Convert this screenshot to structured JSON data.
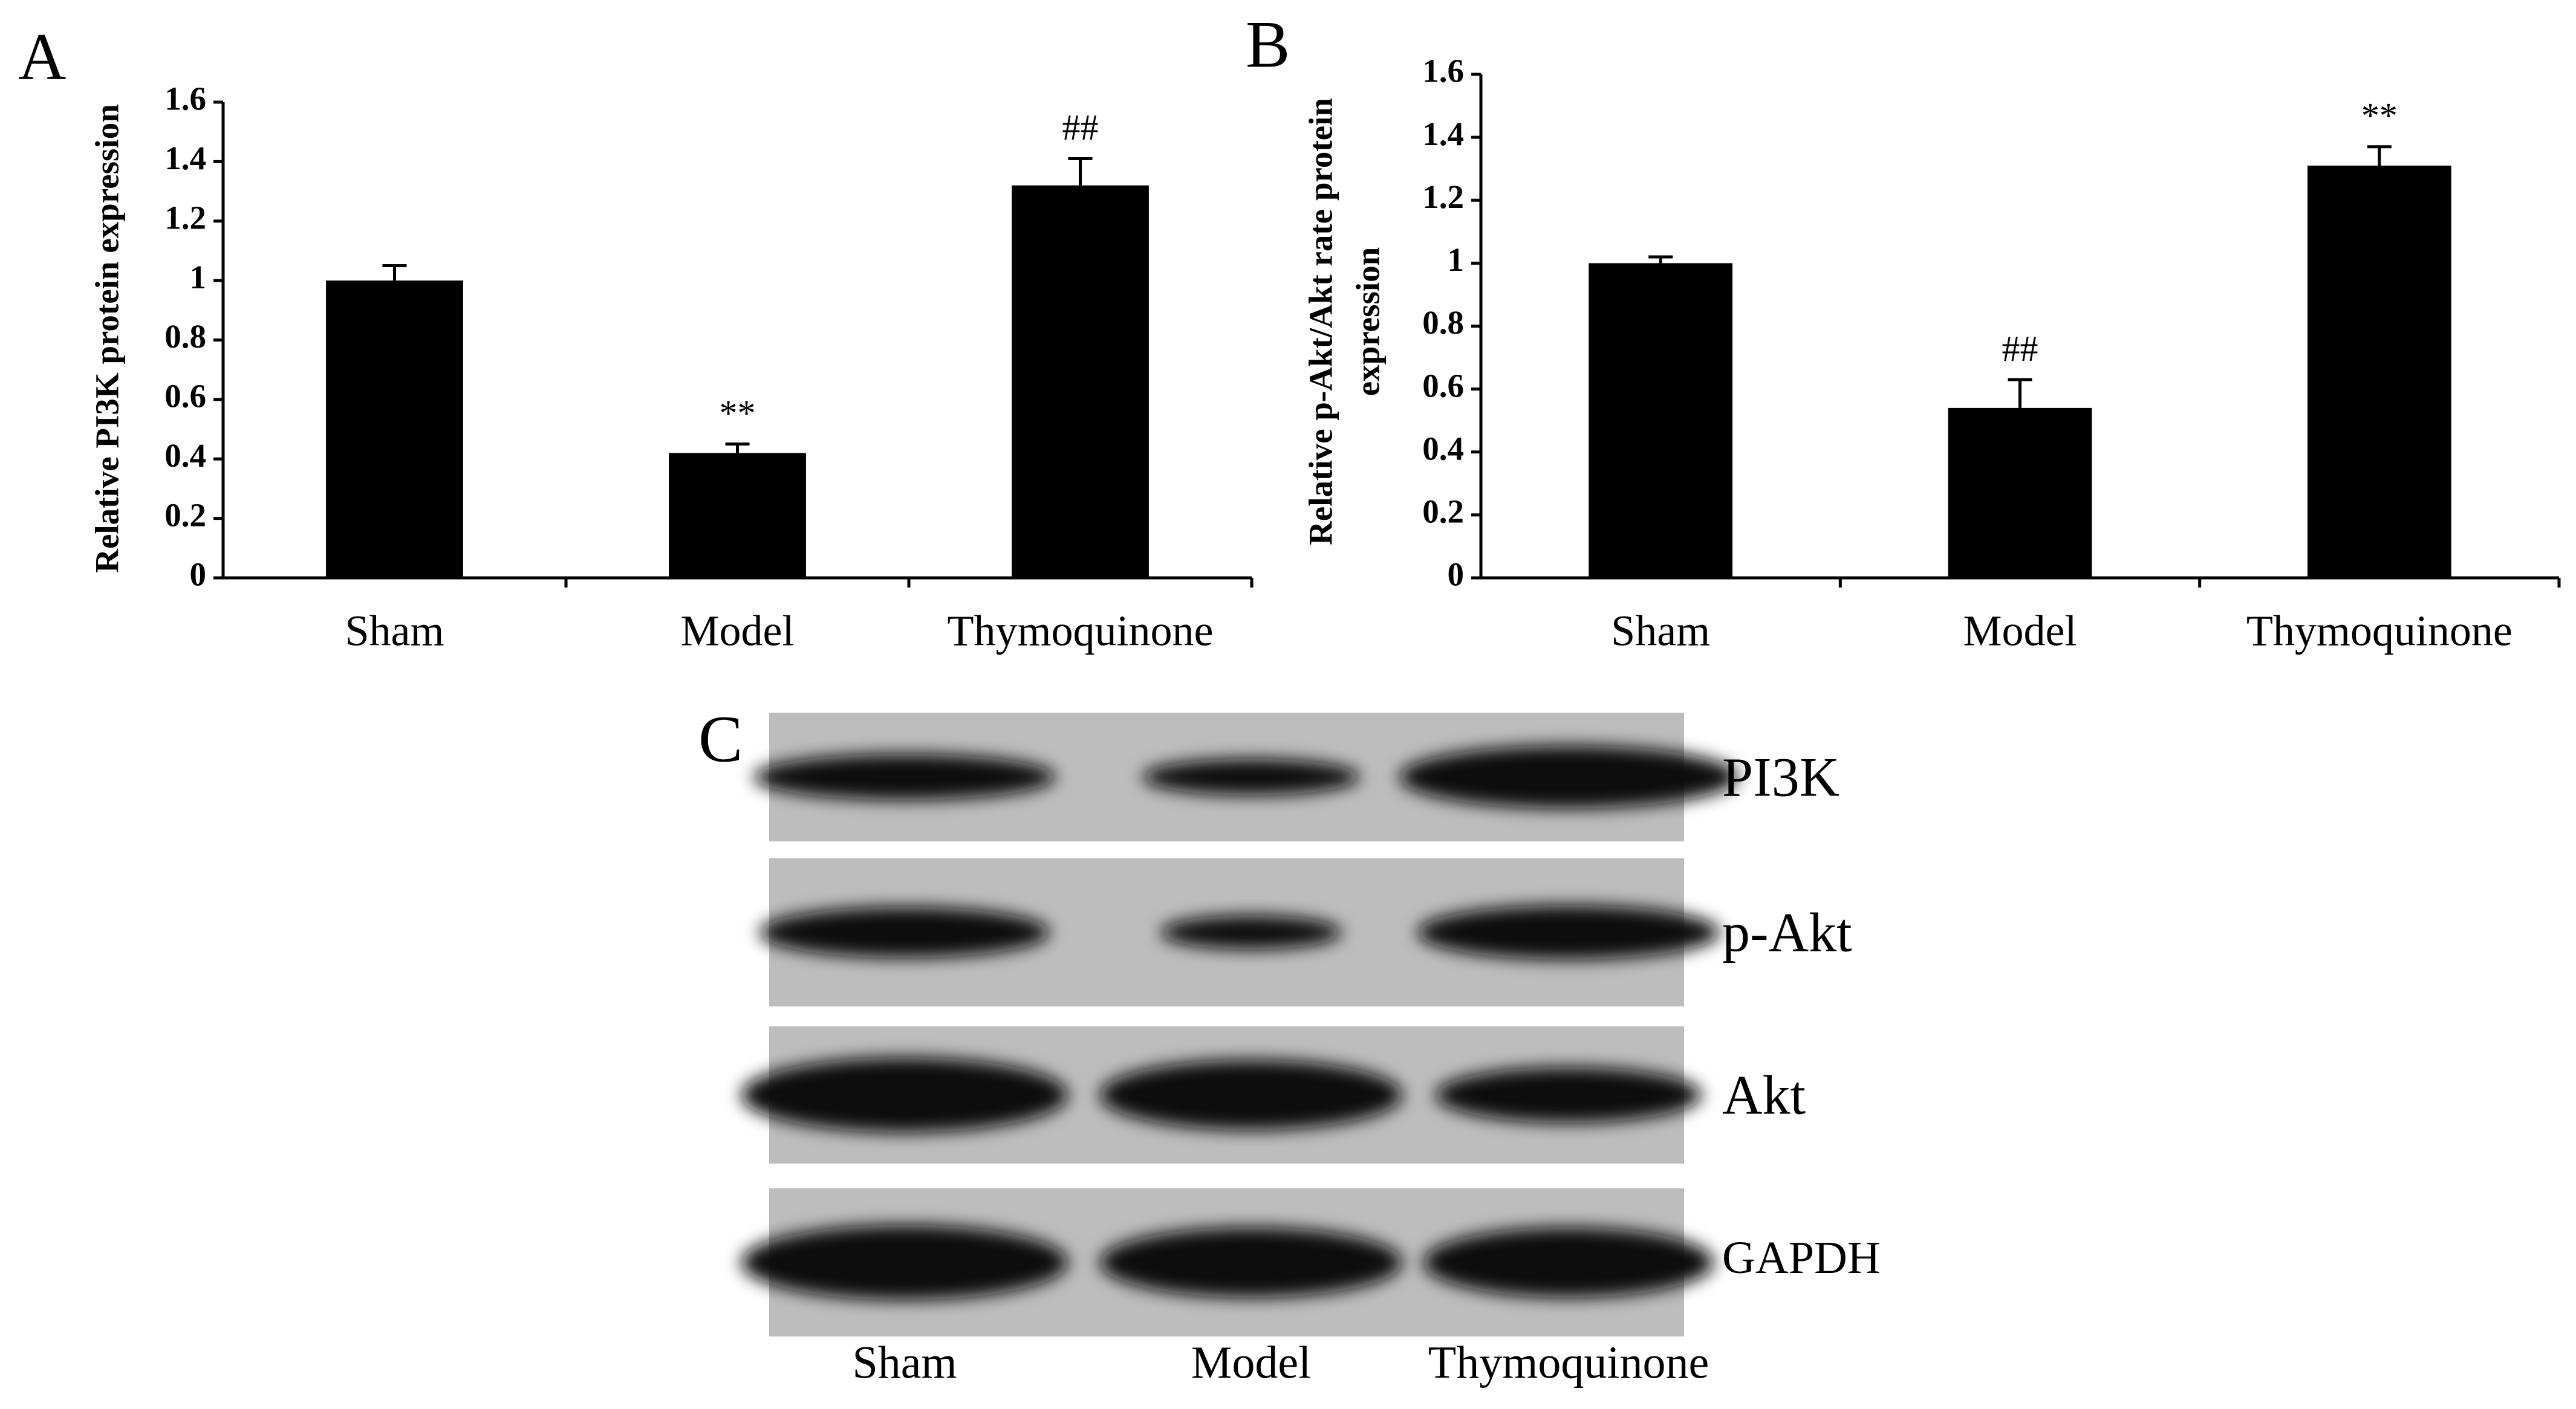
{
  "chart_data": [
    {
      "type": "bar",
      "panel": "A",
      "ylabel": [
        "Relative PI3K protein expression"
      ],
      "categories": [
        "Sham",
        "Model",
        "Thymoquinone"
      ],
      "values": [
        1.0,
        0.42,
        1.32
      ],
      "errors": [
        0.05,
        0.03,
        0.09
      ],
      "annotations": [
        null,
        "**",
        "##"
      ],
      "color": "#000000",
      "ylim": [
        0,
        1.6
      ],
      "yticks": [
        0,
        0.2,
        0.4,
        0.6,
        0.8,
        1,
        1.2,
        1.4,
        1.6
      ]
    },
    {
      "type": "bar",
      "panel": "B",
      "ylabel": [
        "Relative p-Akt/Akt rate protein",
        "expression"
      ],
      "categories": [
        "Sham",
        "Model",
        "Thymoquinone"
      ],
      "values": [
        1.0,
        0.54,
        1.31
      ],
      "errors": [
        0.02,
        0.09,
        0.06
      ],
      "annotations": [
        null,
        "##",
        "**"
      ],
      "color": "#000000",
      "ylim": [
        0,
        1.6
      ],
      "yticks": [
        0,
        0.2,
        0.4,
        0.6,
        0.8,
        1,
        1.2,
        1.4,
        1.6
      ]
    }
  ],
  "blot": {
    "panel": "C",
    "rows": [
      "PI3K",
      "p-Akt",
      "Akt",
      "GAPDH"
    ],
    "lanes": [
      "Sham",
      "Model",
      "Thymoquinone"
    ]
  }
}
